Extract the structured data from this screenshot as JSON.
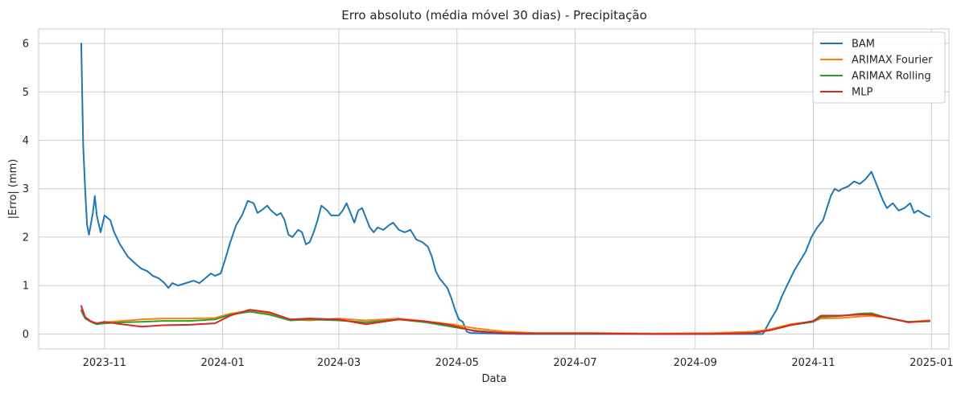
{
  "chart_data": {
    "type": "line",
    "title": "Erro absoluto (média móvel 30 dias) - Precipitação",
    "xlabel": "Data",
    "ylabel": "|Erro| (mm)",
    "xlim": [
      "2023-09-28",
      "2025-01-10"
    ],
    "ylim": [
      -0.31,
      6.3
    ],
    "x_ticks": [
      "2023-11-01",
      "2024-01-01",
      "2024-03-01",
      "2024-05-01",
      "2024-07-01",
      "2024-09-01",
      "2024-11-01",
      "2025-01-01"
    ],
    "x_tick_labels": [
      "2023-11",
      "2024-01",
      "2024-03",
      "2024-05",
      "2024-07",
      "2024-09",
      "2024-11",
      "2025-01"
    ],
    "y_ticks": [
      0,
      1,
      2,
      3,
      4,
      5,
      6
    ],
    "grid": true,
    "legend": "top-right",
    "series": [
      {
        "name": "BAM",
        "color": "#1f77b4",
        "points": [
          [
            "2023-10-20",
            6.0
          ],
          [
            "2023-10-21",
            3.9
          ],
          [
            "2023-10-22",
            3.0
          ],
          [
            "2023-10-23",
            2.25
          ],
          [
            "2023-10-24",
            2.05
          ],
          [
            "2023-10-26",
            2.5
          ],
          [
            "2023-10-27",
            2.85
          ],
          [
            "2023-10-28",
            2.45
          ],
          [
            "2023-10-30",
            2.1
          ],
          [
            "2023-11-01",
            2.45
          ],
          [
            "2023-11-04",
            2.35
          ],
          [
            "2023-11-06",
            2.1
          ],
          [
            "2023-11-09",
            1.85
          ],
          [
            "2023-11-13",
            1.6
          ],
          [
            "2023-11-17",
            1.45
          ],
          [
            "2023-11-20",
            1.35
          ],
          [
            "2023-11-23",
            1.3
          ],
          [
            "2023-11-26",
            1.2
          ],
          [
            "2023-11-29",
            1.15
          ],
          [
            "2023-12-02",
            1.05
          ],
          [
            "2023-12-04",
            0.95
          ],
          [
            "2023-12-06",
            1.05
          ],
          [
            "2023-12-09",
            1.0
          ],
          [
            "2023-12-13",
            1.05
          ],
          [
            "2023-12-17",
            1.1
          ],
          [
            "2023-12-20",
            1.05
          ],
          [
            "2023-12-23",
            1.15
          ],
          [
            "2023-12-26",
            1.25
          ],
          [
            "2023-12-28",
            1.2
          ],
          [
            "2023-12-31",
            1.25
          ],
          [
            "2024-01-02",
            1.5
          ],
          [
            "2024-01-05",
            1.9
          ],
          [
            "2024-01-08",
            2.25
          ],
          [
            "2024-01-11",
            2.45
          ],
          [
            "2024-01-14",
            2.75
          ],
          [
            "2024-01-17",
            2.7
          ],
          [
            "2024-01-19",
            2.5
          ],
          [
            "2024-01-21",
            2.55
          ],
          [
            "2024-01-24",
            2.65
          ],
          [
            "2024-01-26",
            2.55
          ],
          [
            "2024-01-29",
            2.45
          ],
          [
            "2024-01-31",
            2.5
          ],
          [
            "2024-02-02",
            2.35
          ],
          [
            "2024-02-04",
            2.05
          ],
          [
            "2024-02-06",
            2.0
          ],
          [
            "2024-02-09",
            2.15
          ],
          [
            "2024-02-11",
            2.1
          ],
          [
            "2024-02-13",
            1.85
          ],
          [
            "2024-02-15",
            1.9
          ],
          [
            "2024-02-17",
            2.1
          ],
          [
            "2024-02-19",
            2.35
          ],
          [
            "2024-02-21",
            2.65
          ],
          [
            "2024-02-24",
            2.55
          ],
          [
            "2024-02-26",
            2.45
          ],
          [
            "2024-03-01",
            2.45
          ],
          [
            "2024-03-03",
            2.55
          ],
          [
            "2024-03-05",
            2.7
          ],
          [
            "2024-03-07",
            2.5
          ],
          [
            "2024-03-09",
            2.3
          ],
          [
            "2024-03-11",
            2.55
          ],
          [
            "2024-03-13",
            2.6
          ],
          [
            "2024-03-15",
            2.4
          ],
          [
            "2024-03-17",
            2.2
          ],
          [
            "2024-03-19",
            2.1
          ],
          [
            "2024-03-21",
            2.2
          ],
          [
            "2024-03-24",
            2.15
          ],
          [
            "2024-03-27",
            2.25
          ],
          [
            "2024-03-29",
            2.3
          ],
          [
            "2024-04-01",
            2.15
          ],
          [
            "2024-04-04",
            2.1
          ],
          [
            "2024-04-07",
            2.15
          ],
          [
            "2024-04-10",
            1.95
          ],
          [
            "2024-04-13",
            1.9
          ],
          [
            "2024-04-16",
            1.8
          ],
          [
            "2024-04-18",
            1.6
          ],
          [
            "2024-04-20",
            1.3
          ],
          [
            "2024-04-22",
            1.15
          ],
          [
            "2024-04-24",
            1.05
          ],
          [
            "2024-04-26",
            0.95
          ],
          [
            "2024-04-28",
            0.75
          ],
          [
            "2024-04-30",
            0.5
          ],
          [
            "2024-05-02",
            0.3
          ],
          [
            "2024-05-04",
            0.25
          ],
          [
            "2024-05-06",
            0.05
          ],
          [
            "2024-05-08",
            0.02
          ],
          [
            "2024-06-01",
            0.0
          ],
          [
            "2024-08-01",
            0.0
          ],
          [
            "2024-10-06",
            0.0
          ],
          [
            "2024-10-08",
            0.15
          ],
          [
            "2024-10-10",
            0.3
          ],
          [
            "2024-10-13",
            0.5
          ],
          [
            "2024-10-16",
            0.8
          ],
          [
            "2024-10-19",
            1.05
          ],
          [
            "2024-10-22",
            1.3
          ],
          [
            "2024-10-25",
            1.5
          ],
          [
            "2024-10-28",
            1.7
          ],
          [
            "2024-10-31",
            2.0
          ],
          [
            "2024-11-03",
            2.2
          ],
          [
            "2024-11-06",
            2.35
          ],
          [
            "2024-11-08",
            2.6
          ],
          [
            "2024-11-10",
            2.85
          ],
          [
            "2024-11-12",
            3.0
          ],
          [
            "2024-11-14",
            2.95
          ],
          [
            "2024-11-16",
            3.0
          ],
          [
            "2024-11-19",
            3.05
          ],
          [
            "2024-11-22",
            3.15
          ],
          [
            "2024-11-25",
            3.1
          ],
          [
            "2024-11-28",
            3.2
          ],
          [
            "2024-12-01",
            3.35
          ],
          [
            "2024-12-03",
            3.15
          ],
          [
            "2024-12-05",
            2.95
          ],
          [
            "2024-12-07",
            2.75
          ],
          [
            "2024-12-09",
            2.6
          ],
          [
            "2024-12-12",
            2.7
          ],
          [
            "2024-12-15",
            2.55
          ],
          [
            "2024-12-18",
            2.6
          ],
          [
            "2024-12-21",
            2.7
          ],
          [
            "2024-12-23",
            2.5
          ],
          [
            "2024-12-25",
            2.55
          ],
          [
            "2024-12-27",
            2.5
          ],
          [
            "2024-12-29",
            2.45
          ],
          [
            "2024-12-31",
            2.42
          ]
        ]
      },
      {
        "name": "ARIMAX Fourier",
        "color": "#ff7f0e",
        "points": [
          [
            "2023-10-20",
            0.5
          ],
          [
            "2023-10-22",
            0.33
          ],
          [
            "2023-10-25",
            0.26
          ],
          [
            "2023-10-28",
            0.22
          ],
          [
            "2023-11-01",
            0.24
          ],
          [
            "2023-11-10",
            0.27
          ],
          [
            "2023-11-20",
            0.3
          ],
          [
            "2023-12-01",
            0.32
          ],
          [
            "2023-12-15",
            0.32
          ],
          [
            "2023-12-28",
            0.33
          ],
          [
            "2024-01-05",
            0.42
          ],
          [
            "2024-01-15",
            0.48
          ],
          [
            "2024-01-25",
            0.42
          ],
          [
            "2024-02-05",
            0.3
          ],
          [
            "2024-02-15",
            0.28
          ],
          [
            "2024-03-01",
            0.32
          ],
          [
            "2024-03-15",
            0.28
          ],
          [
            "2024-04-01",
            0.32
          ],
          [
            "2024-04-15",
            0.26
          ],
          [
            "2024-04-28",
            0.2
          ],
          [
            "2024-05-10",
            0.12
          ],
          [
            "2024-05-25",
            0.05
          ],
          [
            "2024-06-10",
            0.02
          ],
          [
            "2024-07-10",
            0.02
          ],
          [
            "2024-08-10",
            0.01
          ],
          [
            "2024-09-10",
            0.02
          ],
          [
            "2024-10-01",
            0.05
          ],
          [
            "2024-10-10",
            0.1
          ],
          [
            "2024-10-20",
            0.2
          ],
          [
            "2024-11-01",
            0.26
          ],
          [
            "2024-11-05",
            0.32
          ],
          [
            "2024-11-15",
            0.33
          ],
          [
            "2024-11-25",
            0.36
          ],
          [
            "2024-12-01",
            0.37
          ],
          [
            "2024-12-10",
            0.33
          ],
          [
            "2024-12-20",
            0.25
          ],
          [
            "2024-12-31",
            0.28
          ]
        ]
      },
      {
        "name": "ARIMAX Rolling",
        "color": "#2ca02c",
        "points": [
          [
            "2023-10-20",
            0.48
          ],
          [
            "2023-10-22",
            0.32
          ],
          [
            "2023-10-25",
            0.25
          ],
          [
            "2023-10-28",
            0.2
          ],
          [
            "2023-11-01",
            0.22
          ],
          [
            "2023-11-10",
            0.24
          ],
          [
            "2023-11-20",
            0.25
          ],
          [
            "2023-12-01",
            0.27
          ],
          [
            "2023-12-15",
            0.27
          ],
          [
            "2023-12-28",
            0.3
          ],
          [
            "2024-01-05",
            0.4
          ],
          [
            "2024-01-15",
            0.46
          ],
          [
            "2024-01-25",
            0.4
          ],
          [
            "2024-02-05",
            0.28
          ],
          [
            "2024-02-15",
            0.3
          ],
          [
            "2024-03-01",
            0.28
          ],
          [
            "2024-03-15",
            0.24
          ],
          [
            "2024-04-01",
            0.3
          ],
          [
            "2024-04-15",
            0.24
          ],
          [
            "2024-04-28",
            0.15
          ],
          [
            "2024-05-10",
            0.07
          ],
          [
            "2024-05-25",
            0.02
          ],
          [
            "2024-06-10",
            0.01
          ],
          [
            "2024-07-10",
            0.01
          ],
          [
            "2024-08-10",
            0.0
          ],
          [
            "2024-09-10",
            0.0
          ],
          [
            "2024-10-01",
            0.02
          ],
          [
            "2024-10-10",
            0.08
          ],
          [
            "2024-10-20",
            0.18
          ],
          [
            "2024-11-01",
            0.25
          ],
          [
            "2024-11-05",
            0.35
          ],
          [
            "2024-11-15",
            0.37
          ],
          [
            "2024-11-25",
            0.42
          ],
          [
            "2024-12-01",
            0.43
          ],
          [
            "2024-12-10",
            0.32
          ],
          [
            "2024-12-20",
            0.25
          ],
          [
            "2024-12-31",
            0.26
          ]
        ]
      },
      {
        "name": "MLP",
        "color": "#d62728",
        "points": [
          [
            "2023-10-20",
            0.58
          ],
          [
            "2023-10-22",
            0.35
          ],
          [
            "2023-10-25",
            0.26
          ],
          [
            "2023-10-28",
            0.22
          ],
          [
            "2023-11-01",
            0.25
          ],
          [
            "2023-11-10",
            0.2
          ],
          [
            "2023-11-20",
            0.15
          ],
          [
            "2023-12-01",
            0.18
          ],
          [
            "2023-12-15",
            0.19
          ],
          [
            "2023-12-28",
            0.22
          ],
          [
            "2024-01-05",
            0.38
          ],
          [
            "2024-01-15",
            0.5
          ],
          [
            "2024-01-25",
            0.45
          ],
          [
            "2024-02-05",
            0.3
          ],
          [
            "2024-02-15",
            0.32
          ],
          [
            "2024-03-01",
            0.3
          ],
          [
            "2024-03-15",
            0.2
          ],
          [
            "2024-04-01",
            0.3
          ],
          [
            "2024-04-15",
            0.26
          ],
          [
            "2024-04-28",
            0.18
          ],
          [
            "2024-05-10",
            0.06
          ],
          [
            "2024-05-25",
            0.02
          ],
          [
            "2024-06-10",
            0.01
          ],
          [
            "2024-07-10",
            0.01
          ],
          [
            "2024-08-10",
            0.0
          ],
          [
            "2024-09-10",
            0.0
          ],
          [
            "2024-10-01",
            0.02
          ],
          [
            "2024-10-10",
            0.08
          ],
          [
            "2024-10-20",
            0.18
          ],
          [
            "2024-11-01",
            0.27
          ],
          [
            "2024-11-05",
            0.38
          ],
          [
            "2024-11-15",
            0.38
          ],
          [
            "2024-11-25",
            0.4
          ],
          [
            "2024-12-01",
            0.4
          ],
          [
            "2024-12-10",
            0.33
          ],
          [
            "2024-12-20",
            0.24
          ],
          [
            "2024-12-31",
            0.27
          ]
        ]
      }
    ]
  }
}
